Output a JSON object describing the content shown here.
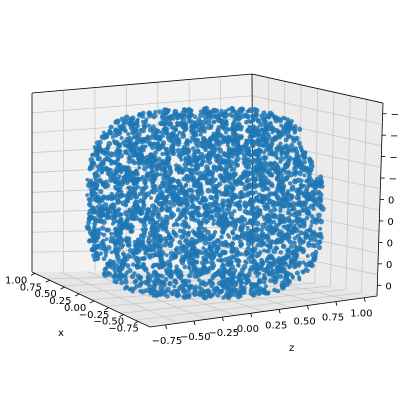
{
  "chart_data": {
    "type": "scatter",
    "projection": "3d",
    "title": "",
    "xlabel": "x",
    "ylabel": "",
    "zlabel": "z",
    "xlim": [
      -0.8,
      1.0
    ],
    "zlim": [
      -0.9,
      1.0
    ],
    "x_ticks": [
      "1.00",
      "0.75",
      "0.50",
      "0.25",
      "0.00",
      "−0.25",
      "−0.50",
      "−0.75"
    ],
    "z_ticks": [
      "−0.75",
      "−0.50",
      "−0.25",
      "0.00",
      "0.25",
      "0.50",
      "0.75",
      "1.00"
    ],
    "right_ticks": [
      "−",
      "−",
      "−",
      "−",
      "0",
      "0",
      "0",
      "0",
      "0"
    ],
    "grid": true,
    "legend": "none",
    "point_color": "#1f77b4",
    "pane_colors": [
      "#f2f2f2",
      "#ebebeb",
      "#e6e6e6"
    ],
    "shape": "dense point cloud forming a rounded box-like blob"
  }
}
